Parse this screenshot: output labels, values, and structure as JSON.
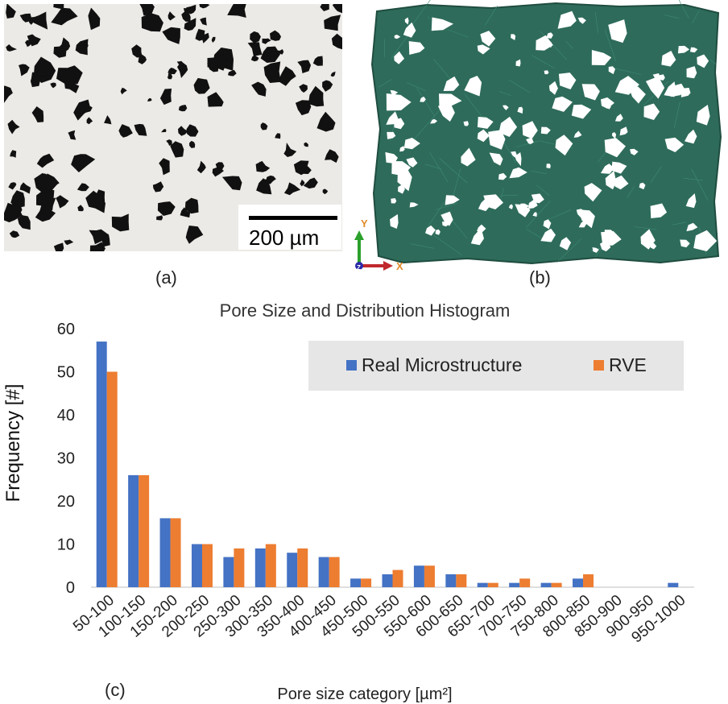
{
  "panel_a": {
    "caption": "(a)",
    "scale_bar": "200 µm"
  },
  "panel_b": {
    "caption": "(b)",
    "axis_y": "Y",
    "axis_x": "X",
    "axis_z": "Z"
  },
  "panel_c": {
    "caption": "(c)"
  },
  "colors": {
    "real": "#4472C4",
    "rve": "#ED7D31",
    "mesh": "#2e6b5a",
    "legend_bg": "#e7e6e6"
  },
  "chart_data": {
    "type": "bar",
    "title": "Pore Size and Distribution Histogram",
    "xlabel": "Pore size category [µm²]",
    "ylabel": "Frequency [#]",
    "ylim": [
      0,
      60
    ],
    "yticks": [
      0,
      10,
      20,
      30,
      40,
      50,
      60
    ],
    "grid": false,
    "legend_position": "top-right",
    "categories": [
      "50-100",
      "100-150",
      "150-200",
      "200-250",
      "250-300",
      "300-350",
      "350-400",
      "400-450",
      "450-500",
      "500-550",
      "550-600",
      "600-650",
      "650-700",
      "700-750",
      "750-800",
      "800-850",
      "850-900",
      "900-950",
      "950-1000"
    ],
    "series": [
      {
        "name": "Real Microstructure",
        "values": [
          57,
          26,
          16,
          10,
          7,
          9,
          8,
          7,
          2,
          3,
          5,
          3,
          1,
          1,
          1,
          2,
          0,
          0,
          1
        ]
      },
      {
        "name": "RVE",
        "values": [
          50,
          26,
          16,
          10,
          9,
          10,
          9,
          7,
          2,
          4,
          5,
          3,
          1,
          2,
          1,
          3,
          0,
          0,
          0
        ]
      }
    ]
  }
}
